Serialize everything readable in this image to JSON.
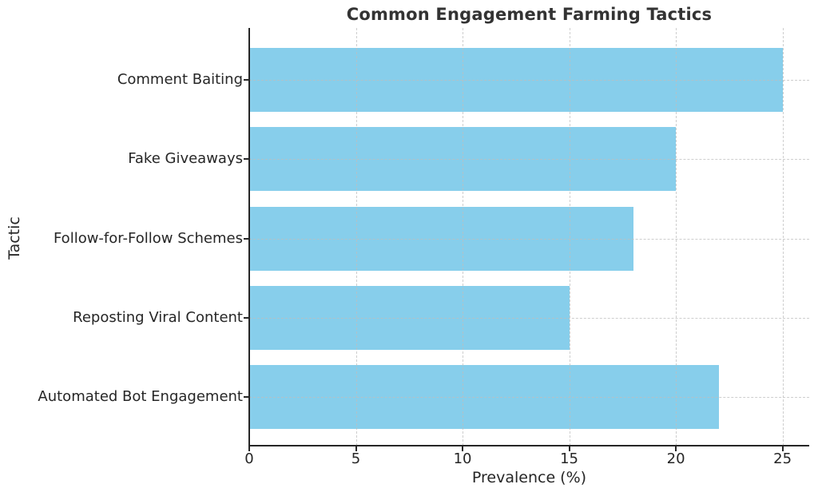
{
  "chart_data": {
    "type": "bar",
    "orientation": "horizontal",
    "title": "Common Engagement Farming Tactics",
    "xlabel": "Prevalence (%)",
    "ylabel": "Tactic",
    "categories": [
      "Comment Baiting",
      "Fake Giveaways",
      "Follow-for-Follow Schemes",
      "Reposting Viral Content",
      "Automated Bot Engagement"
    ],
    "values": [
      25,
      20,
      18,
      15,
      22
    ],
    "xticks": [
      0,
      5,
      10,
      15,
      20,
      25
    ],
    "xlim": [
      0,
      26.25
    ],
    "grid": "dashed-both-axes-above-bars",
    "legend": "none",
    "colors": {
      "bar": "#87CEEB",
      "grid": "#bebebe",
      "axis": "#262626",
      "tick_text": "#262626",
      "title_text": "#333333",
      "background": "#ffffff"
    }
  }
}
